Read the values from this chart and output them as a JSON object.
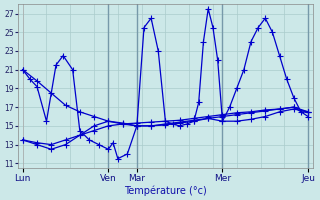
{
  "xlabel": "Température (°c)",
  "ylim": [
    10.5,
    28
  ],
  "yticks": [
    11,
    13,
    15,
    17,
    19,
    21,
    23,
    25,
    27
  ],
  "days": [
    "Lun",
    "Ven",
    "Mar",
    "Mer",
    "Jeu"
  ],
  "background_color": "#cce8e8",
  "grid_color": "#aacccc",
  "line_color": "#0000cc",
  "series": {
    "s1_x": [
      0,
      6,
      12,
      18,
      24,
      30,
      36,
      42,
      48,
      54,
      60,
      66,
      72,
      78,
      84,
      90,
      96,
      102,
      108,
      114,
      120
    ],
    "s1_y": [
      21.0,
      19.8,
      18.5,
      17.2,
      16.5,
      16.0,
      15.5,
      15.2,
      15.0,
      15.0,
      15.1,
      15.3,
      15.5,
      15.8,
      15.5,
      15.5,
      15.7,
      16.0,
      16.5,
      16.8,
      16.5
    ],
    "s2_x": [
      0,
      6,
      12,
      18,
      24,
      30,
      36,
      42,
      48,
      54,
      60,
      66,
      72,
      78,
      84,
      90,
      96,
      102,
      108,
      114,
      120
    ],
    "s2_y": [
      13.5,
      13.2,
      13.0,
      13.5,
      14.0,
      14.5,
      15.0,
      15.2,
      15.3,
      15.4,
      15.5,
      15.6,
      15.8,
      16.0,
      16.2,
      16.4,
      16.5,
      16.7,
      16.8,
      17.0,
      16.5
    ],
    "s3_x": [
      0,
      6,
      12,
      18,
      24,
      30,
      36,
      42,
      48,
      54,
      60,
      66,
      72,
      78,
      84,
      90,
      96,
      102,
      108,
      114,
      120
    ],
    "s3_y": [
      13.5,
      13.0,
      12.5,
      13.0,
      14.0,
      15.0,
      15.5,
      15.3,
      15.0,
      15.0,
      15.2,
      15.4,
      15.6,
      15.8,
      16.0,
      16.2,
      16.4,
      16.6,
      16.8,
      17.0,
      16.0
    ],
    "s4_x": [
      0,
      3,
      6,
      10,
      14,
      17,
      21,
      24,
      28,
      32,
      36,
      38,
      40,
      44,
      48,
      51,
      54,
      57,
      60,
      63,
      66,
      69,
      72,
      74,
      76,
      78,
      80,
      82,
      84,
      87,
      90,
      93,
      96,
      99,
      102,
      105,
      108,
      111,
      114,
      117,
      120
    ],
    "s4_y": [
      21.0,
      20.0,
      19.2,
      15.5,
      21.5,
      22.5,
      21.0,
      14.5,
      13.5,
      13.0,
      12.5,
      13.2,
      11.5,
      12.0,
      15.0,
      25.5,
      26.5,
      23.0,
      15.5,
      15.2,
      15.0,
      15.2,
      15.5,
      17.5,
      24.0,
      27.5,
      25.5,
      22.0,
      15.5,
      17.0,
      19.0,
      21.0,
      24.0,
      25.5,
      26.5,
      25.0,
      22.5,
      20.0,
      18.0,
      16.5,
      16.5
    ]
  },
  "day_x": [
    0,
    36,
    48,
    84,
    120
  ],
  "day_labels": [
    "Lun",
    "Ven",
    "Mar",
    "Mer",
    "Jeu"
  ]
}
